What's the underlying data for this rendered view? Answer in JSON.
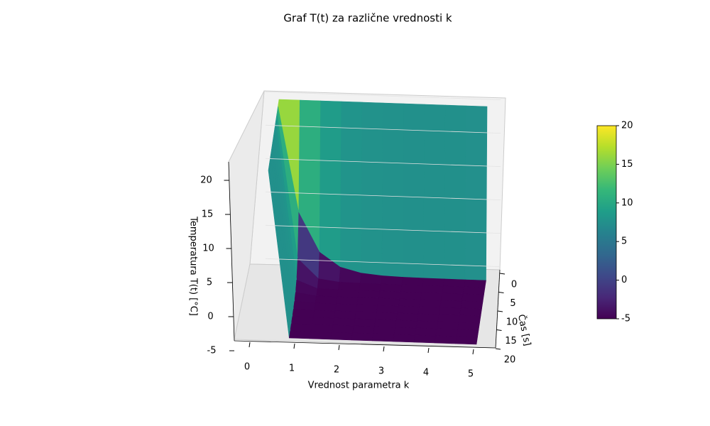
{
  "chart_data": {
    "type": "surface3d",
    "title": "Graf T(t) za različne vrednosti k",
    "xlabel": "Vrednost parametra k",
    "ylabel": "Čas [s]",
    "zlabel": "Temperatura T(t) [°C]",
    "k": [
      0,
      0.5,
      1,
      1.5,
      2,
      2.5,
      3,
      3.5,
      4,
      4.5,
      5
    ],
    "t": [
      0,
      2,
      4,
      6,
      8,
      10,
      12,
      14,
      16,
      18,
      20
    ],
    "z": [
      [
        20,
        20,
        20,
        20,
        20,
        20,
        20,
        20,
        20,
        20,
        20
      ],
      [
        20,
        4.2,
        -1.62,
        -3.76,
        -4.54,
        -4.83,
        -4.94,
        -4.98,
        -4.99,
        -5,
        -5
      ],
      [
        20,
        -1.62,
        -4.54,
        -4.94,
        -4.99,
        -5,
        -5,
        -5,
        -5,
        -5,
        -5
      ],
      [
        20,
        -3.76,
        -4.94,
        -5,
        -5,
        -5,
        -5,
        -5,
        -5,
        -5,
        -5
      ],
      [
        20,
        -4.54,
        -4.99,
        -5,
        -5,
        -5,
        -5,
        -5,
        -5,
        -5,
        -5
      ],
      [
        20,
        -4.83,
        -5,
        -5,
        -5,
        -5,
        -5,
        -5,
        -5,
        -5,
        -5
      ],
      [
        20,
        -4.94,
        -5,
        -5,
        -5,
        -5,
        -5,
        -5,
        -5,
        -5,
        -5
      ],
      [
        20,
        -4.98,
        -5,
        -5,
        -5,
        -5,
        -5,
        -5,
        -5,
        -5,
        -5
      ],
      [
        20,
        -4.99,
        -5,
        -5,
        -5,
        -5,
        -5,
        -5,
        -5,
        -5,
        -5
      ],
      [
        20,
        -5,
        -5,
        -5,
        -5,
        -5,
        -5,
        -5,
        -5,
        -5,
        -5
      ],
      [
        20,
        -5,
        -5,
        -5,
        -5,
        -5,
        -5,
        -5,
        -5,
        -5,
        -5
      ]
    ],
    "xticks": [
      0,
      1,
      2,
      3,
      4,
      5
    ],
    "yticks": [
      0,
      5,
      10,
      15,
      20
    ],
    "zticks": [
      -5,
      0,
      5,
      10,
      15,
      20
    ],
    "zlim": [
      -5,
      20
    ],
    "clim": [
      -5,
      20
    ],
    "colorbar_ticks": [
      -5,
      0,
      5,
      10,
      15,
      20
    ],
    "colormap": [
      "#440154",
      "#482878",
      "#3e4989",
      "#31688e",
      "#26828e",
      "#1f9e89",
      "#35b779",
      "#6ece58",
      "#b5de2b",
      "#fde725"
    ],
    "grid": true
  }
}
